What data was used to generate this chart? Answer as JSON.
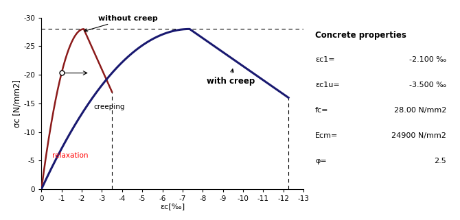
{
  "ylabel": "σc [N/mm2]",
  "xlabel": "εc[‰]",
  "fc": 28.0,
  "Ecm": 24900,
  "ec1": 2.1,
  "ec1u": 3.5,
  "phi": 2.5,
  "yticks": [
    0,
    5,
    10,
    15,
    20,
    25,
    30
  ],
  "ytick_labels": [
    "0",
    "-5",
    "-10",
    "-15",
    "-20",
    "-25",
    "-30"
  ],
  "xticks": [
    0,
    1,
    2,
    3,
    4,
    5,
    6,
    7,
    8,
    9,
    10,
    11,
    12,
    13
  ],
  "xtick_labels": [
    "0",
    "-1",
    "-2",
    "-3",
    "-4",
    "-5",
    "-6",
    "-7",
    "-8",
    "-9",
    "-10",
    "-11",
    "-12",
    "-13"
  ],
  "curve_no_creep_color": "#8B1A1A",
  "curve_with_creep_color": "#191970",
  "label_without_creep": "without creep",
  "label_with_creep": "with creep",
  "label_relaxation": "relaxation",
  "label_creeping": "creeping",
  "props_title": "Concrete properties",
  "prop_ec1": "εc1=",
  "prop_ec1u": "εc1u=",
  "prop_fc": "fc=",
  "prop_Ecm": "Ecm=",
  "prop_phi": "φ=",
  "prop_ec1_val": "-2.100 ‰",
  "prop_ec1u_val": "-3.500 ‰",
  "prop_fc_val": "28.00 N/mm2",
  "prop_Ecm_val": "24900 N/mm2",
  "prop_phi_val": "2.5"
}
